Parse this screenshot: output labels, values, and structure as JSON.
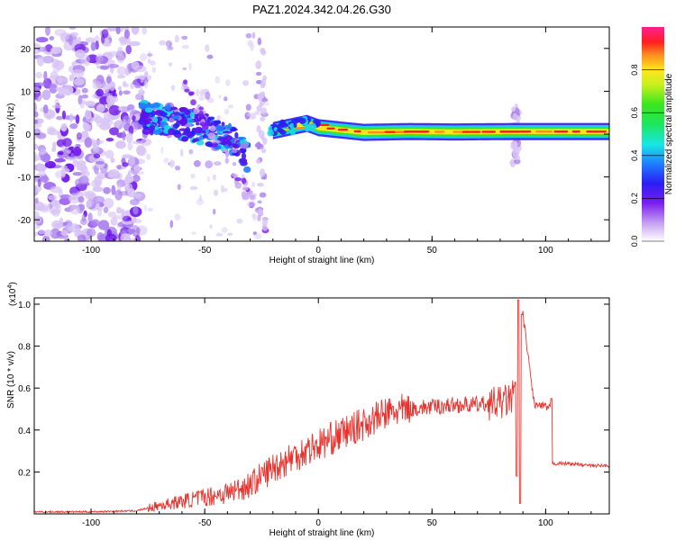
{
  "title": "PAZ1.2024.342.04.26.G30",
  "chart_data": [
    {
      "type": "heatmap",
      "xlabel": "Height of straight line (km)",
      "ylabel": "Frequency (Hz)",
      "xlim": [
        -125,
        128
      ],
      "ylim": [
        -25,
        25
      ],
      "xticks": [
        "-100",
        "-50",
        "0",
        "50",
        "100"
      ],
      "xtick_values": [
        -100,
        -50,
        0,
        50,
        100
      ],
      "yticks": [
        "-20",
        "-10",
        "0",
        "10",
        "20"
      ],
      "ytick_values": [
        -20,
        -10,
        0,
        10,
        20
      ],
      "colorbar": {
        "label": "Normalized spectral amplitude",
        "range": [
          0,
          1
        ],
        "ticks": [
          "0.0",
          "0.2",
          "0.4",
          "0.6",
          "0.8"
        ],
        "tick_values": [
          0,
          0.2,
          0.4,
          0.6,
          0.8
        ]
      },
      "features": {
        "diffuse_noise_x": [
          -125,
          -78
        ],
        "descending_tone": [
          [
            -78,
            4
          ],
          [
            -65,
            3
          ],
          [
            -50,
            1
          ],
          [
            -40,
            -1
          ],
          [
            -33,
            -4
          ],
          [
            -31,
            -6
          ]
        ],
        "main_tone": [
          [
            -20,
            0.8
          ],
          [
            -5,
            2.5
          ],
          [
            0,
            1.5
          ],
          [
            20,
            0.4
          ],
          [
            40,
            0.6
          ],
          [
            60,
            0.5
          ],
          [
            85,
            0.6
          ],
          [
            128,
            0.6
          ]
        ]
      }
    },
    {
      "type": "line",
      "xlabel": "Height of straight line (km)",
      "ylabel": "SNR (10 * v/v)",
      "y_exponent": "(x10",
      "y_exponent_power": "4",
      "xlim": [
        -125,
        128
      ],
      "ylim": [
        0,
        1.03
      ],
      "xticks": [
        "-100",
        "-50",
        "0",
        "50",
        "100"
      ],
      "xtick_values": [
        -100,
        -50,
        0,
        50,
        100
      ],
      "yticks": [
        "0.2",
        "0.4",
        "0.6",
        "0.8",
        "1.0"
      ],
      "ytick_values": [
        0.2,
        0.4,
        0.6,
        0.8,
        1.0
      ],
      "color": "#e8332e",
      "series_outline": {
        "x": [
          -125,
          -100,
          -80,
          -70,
          -60,
          -50,
          -40,
          -30,
          -20,
          -10,
          0,
          10,
          20,
          30,
          40,
          50,
          60,
          70,
          80,
          85,
          87,
          88,
          89,
          90,
          95,
          100,
          102,
          103,
          110,
          120,
          128
        ],
        "y": [
          0.01,
          0.01,
          0.015,
          0.04,
          0.06,
          0.08,
          0.1,
          0.14,
          0.22,
          0.28,
          0.33,
          0.38,
          0.43,
          0.48,
          0.5,
          0.51,
          0.52,
          0.52,
          0.53,
          0.55,
          0.6,
          1.02,
          0.05,
          0.95,
          0.52,
          0.51,
          0.5,
          0.24,
          0.24,
          0.23,
          0.23
        ]
      }
    }
  ]
}
